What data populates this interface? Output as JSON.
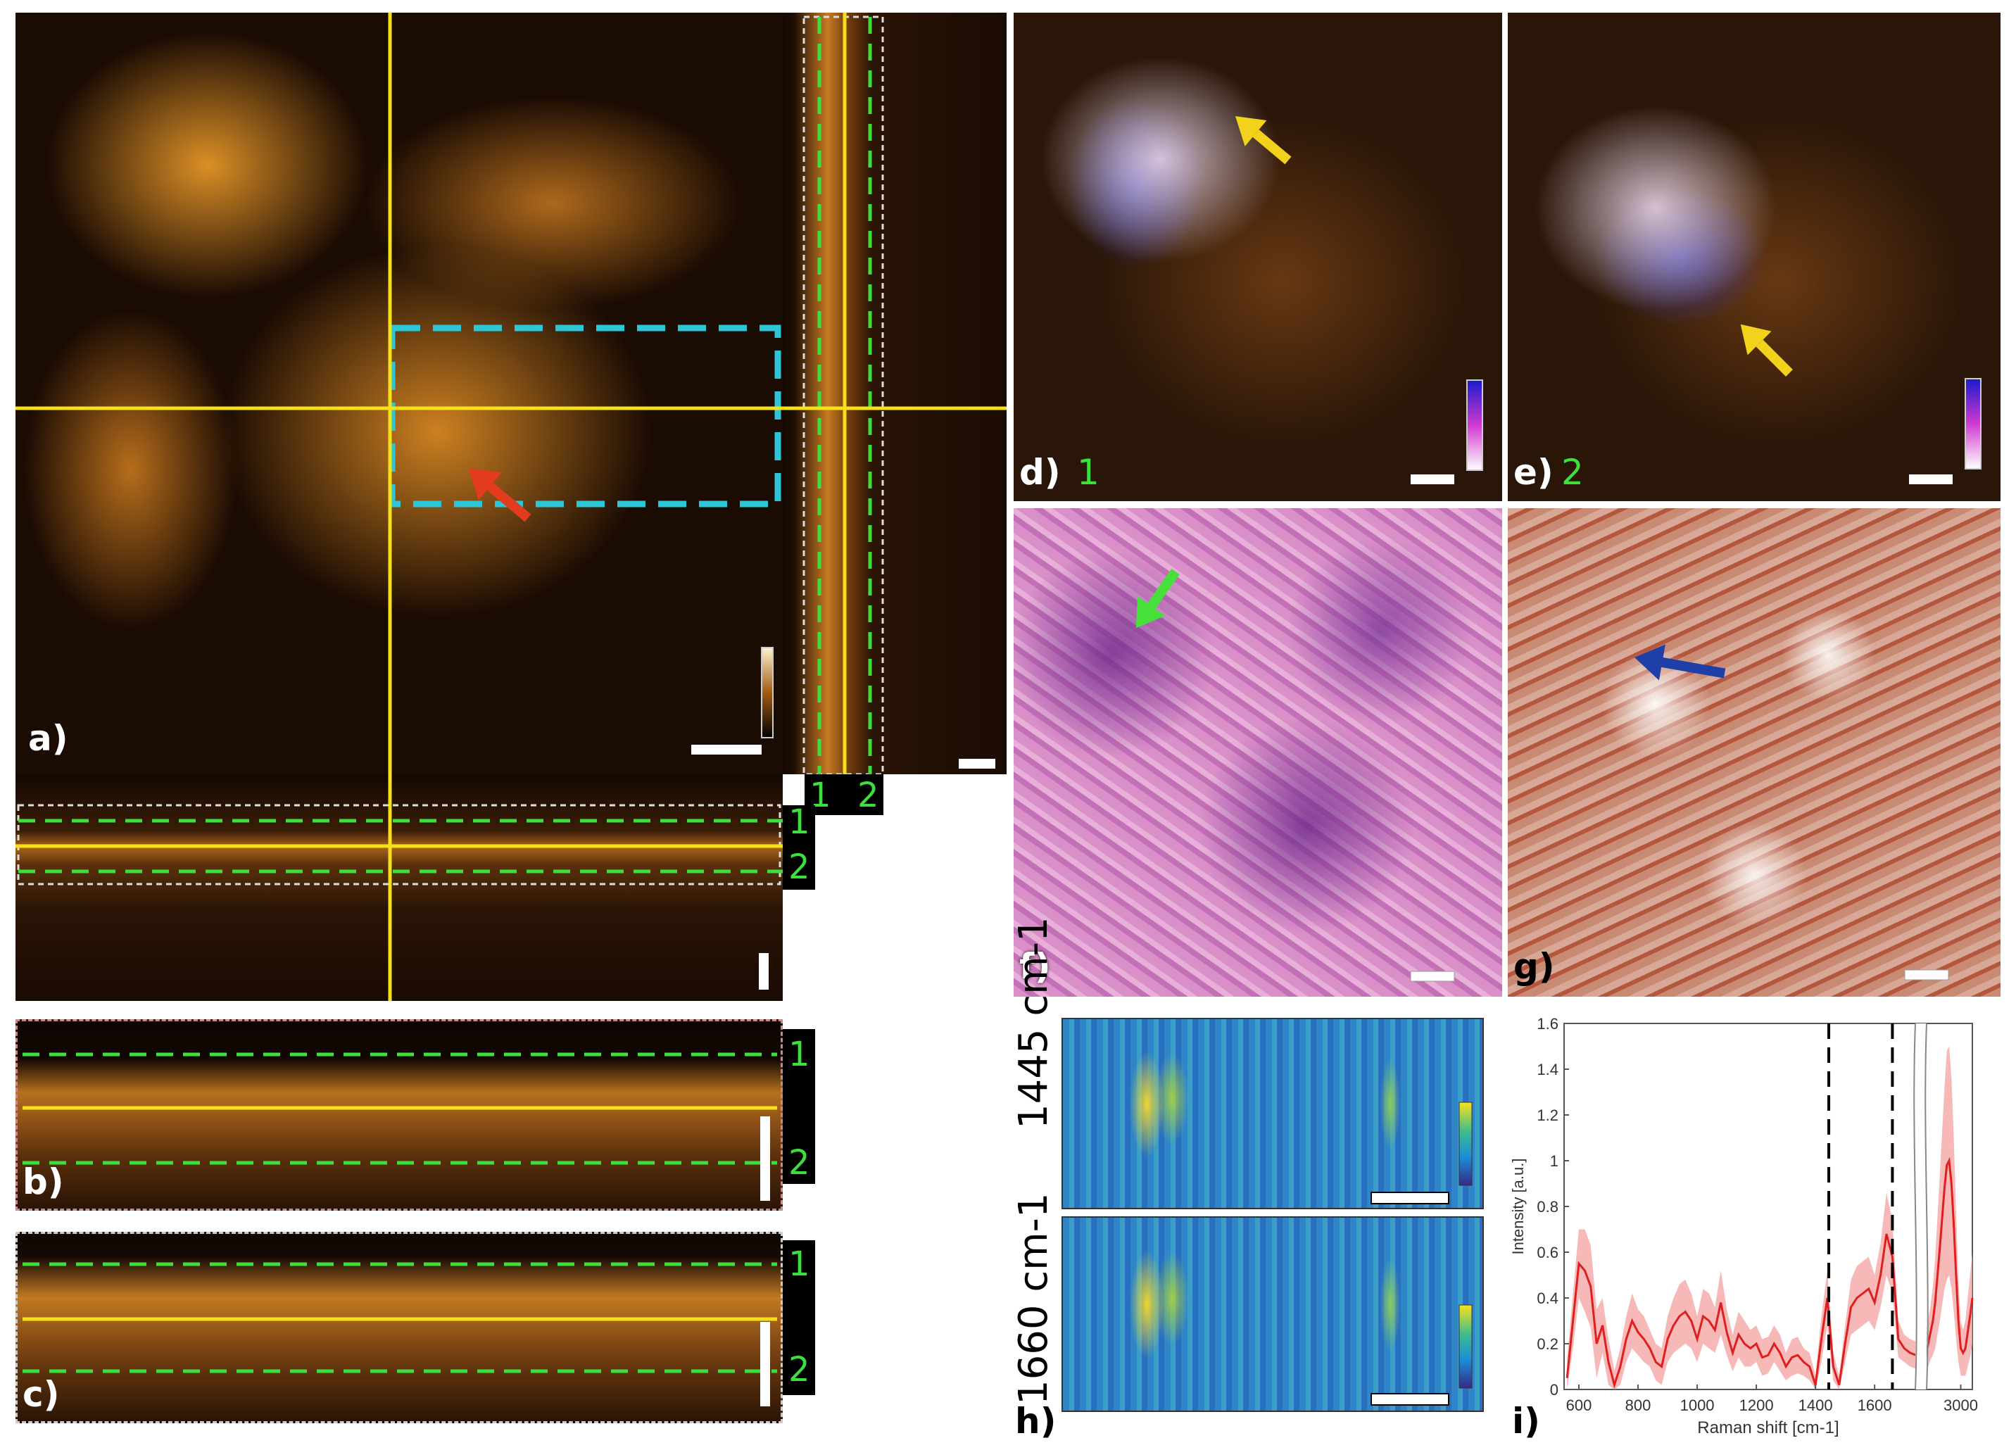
{
  "panels": {
    "a": {
      "label": "a)"
    },
    "b": {
      "label": "b)"
    },
    "c": {
      "label": "c)"
    },
    "d": {
      "label": "d)",
      "index": "1"
    },
    "e": {
      "label": "e)",
      "index": "2"
    },
    "f": {
      "label": "f)"
    },
    "g": {
      "label": "g)"
    },
    "h": {
      "label": "h)",
      "top_ylabel": "1445 cm-1",
      "bottom_ylabel": "1660 cm-1"
    },
    "i": {
      "label": "i)"
    }
  },
  "plane_labels": {
    "one": "1",
    "two": "2"
  },
  "colors": {
    "crosshair": "#f5e01a",
    "plane_dash": "#3ce03c",
    "roi": "#2cc6d6",
    "arrow_red": "#e23b1e",
    "arrow_yellow": "#f2d21a",
    "arrow_green": "#47e03a",
    "arrow_blue": "#1e3fa8",
    "spectrum": "#e01e1e",
    "spectrum_band": "#f4a0a0"
  },
  "chart_data": {
    "type": "line",
    "xlabel": "Raman shift [cm-1]",
    "ylabel": "Intensity [a.u.]",
    "ylim": [
      0,
      1.6
    ],
    "yticks": [
      "0",
      "0.2",
      "0.4",
      "0.6",
      "0.8",
      "1",
      "1.2",
      "1.4",
      "1.6"
    ],
    "xticks": [
      "600",
      "800",
      "1000",
      "1200",
      "1400",
      "1600",
      "3000"
    ],
    "xlim_left": [
      550,
      1740
    ],
    "xlim_right": [
      2700,
      3100
    ],
    "marked_lines": [
      1445,
      1660
    ],
    "series": [
      {
        "x_left": [
          560,
          580,
          600,
          620,
          640,
          660,
          680,
          700,
          720,
          740,
          760,
          780,
          800,
          820,
          840,
          860,
          880,
          900,
          920,
          940,
          960,
          980,
          1000,
          1020,
          1040,
          1060,
          1080,
          1100,
          1120,
          1140,
          1160,
          1180,
          1200,
          1220,
          1240,
          1260,
          1280,
          1300,
          1320,
          1340,
          1360,
          1380,
          1400,
          1420,
          1440,
          1460,
          1480,
          1500,
          1520,
          1540,
          1560,
          1580,
          1600,
          1620,
          1640,
          1660,
          1680,
          1700,
          1720,
          1740
        ],
        "y_left": [
          0.05,
          0.3,
          0.55,
          0.52,
          0.45,
          0.2,
          0.28,
          0.12,
          0.02,
          0.1,
          0.22,
          0.3,
          0.25,
          0.22,
          0.18,
          0.12,
          0.1,
          0.22,
          0.28,
          0.32,
          0.34,
          0.3,
          0.22,
          0.32,
          0.3,
          0.26,
          0.38,
          0.25,
          0.16,
          0.24,
          0.2,
          0.18,
          0.2,
          0.14,
          0.15,
          0.2,
          0.16,
          0.1,
          0.14,
          0.15,
          0.12,
          0.1,
          0.02,
          0.22,
          0.4,
          0.1,
          0.02,
          0.2,
          0.36,
          0.4,
          0.42,
          0.44,
          0.38,
          0.5,
          0.68,
          0.58,
          0.22,
          0.18,
          0.16,
          0.15
        ],
        "band_left": [
          0.08,
          0.12,
          0.15,
          0.18,
          0.18,
          0.15,
          0.12,
          0.1,
          0.06,
          0.08,
          0.1,
          0.12,
          0.1,
          0.1,
          0.08,
          0.08,
          0.08,
          0.1,
          0.12,
          0.14,
          0.14,
          0.12,
          0.1,
          0.12,
          0.12,
          0.1,
          0.14,
          0.1,
          0.08,
          0.1,
          0.1,
          0.08,
          0.08,
          0.08,
          0.08,
          0.08,
          0.08,
          0.06,
          0.08,
          0.08,
          0.06,
          0.06,
          0.04,
          0.1,
          0.12,
          0.06,
          0.04,
          0.08,
          0.12,
          0.14,
          0.14,
          0.14,
          0.12,
          0.14,
          0.18,
          0.16,
          0.08,
          0.06,
          0.06,
          0.06
        ],
        "x_right": [
          2700,
          2720,
          2740,
          2760,
          2780,
          2800,
          2820,
          2840,
          2860,
          2880,
          2900,
          2920,
          2940,
          2960,
          2980,
          3000,
          3020,
          3040,
          3060,
          3080,
          3100
        ],
        "y_right": [
          0.15,
          0.2,
          0.25,
          0.3,
          0.38,
          0.5,
          0.62,
          0.75,
          0.88,
          0.98,
          1.0,
          0.9,
          0.72,
          0.5,
          0.3,
          0.18,
          0.16,
          0.18,
          0.25,
          0.32,
          0.4
        ],
        "band_right": [
          0.08,
          0.1,
          0.12,
          0.15,
          0.2,
          0.26,
          0.32,
          0.38,
          0.44,
          0.5,
          0.5,
          0.46,
          0.38,
          0.28,
          0.18,
          0.12,
          0.1,
          0.12,
          0.15,
          0.18,
          0.2
        ]
      }
    ]
  }
}
